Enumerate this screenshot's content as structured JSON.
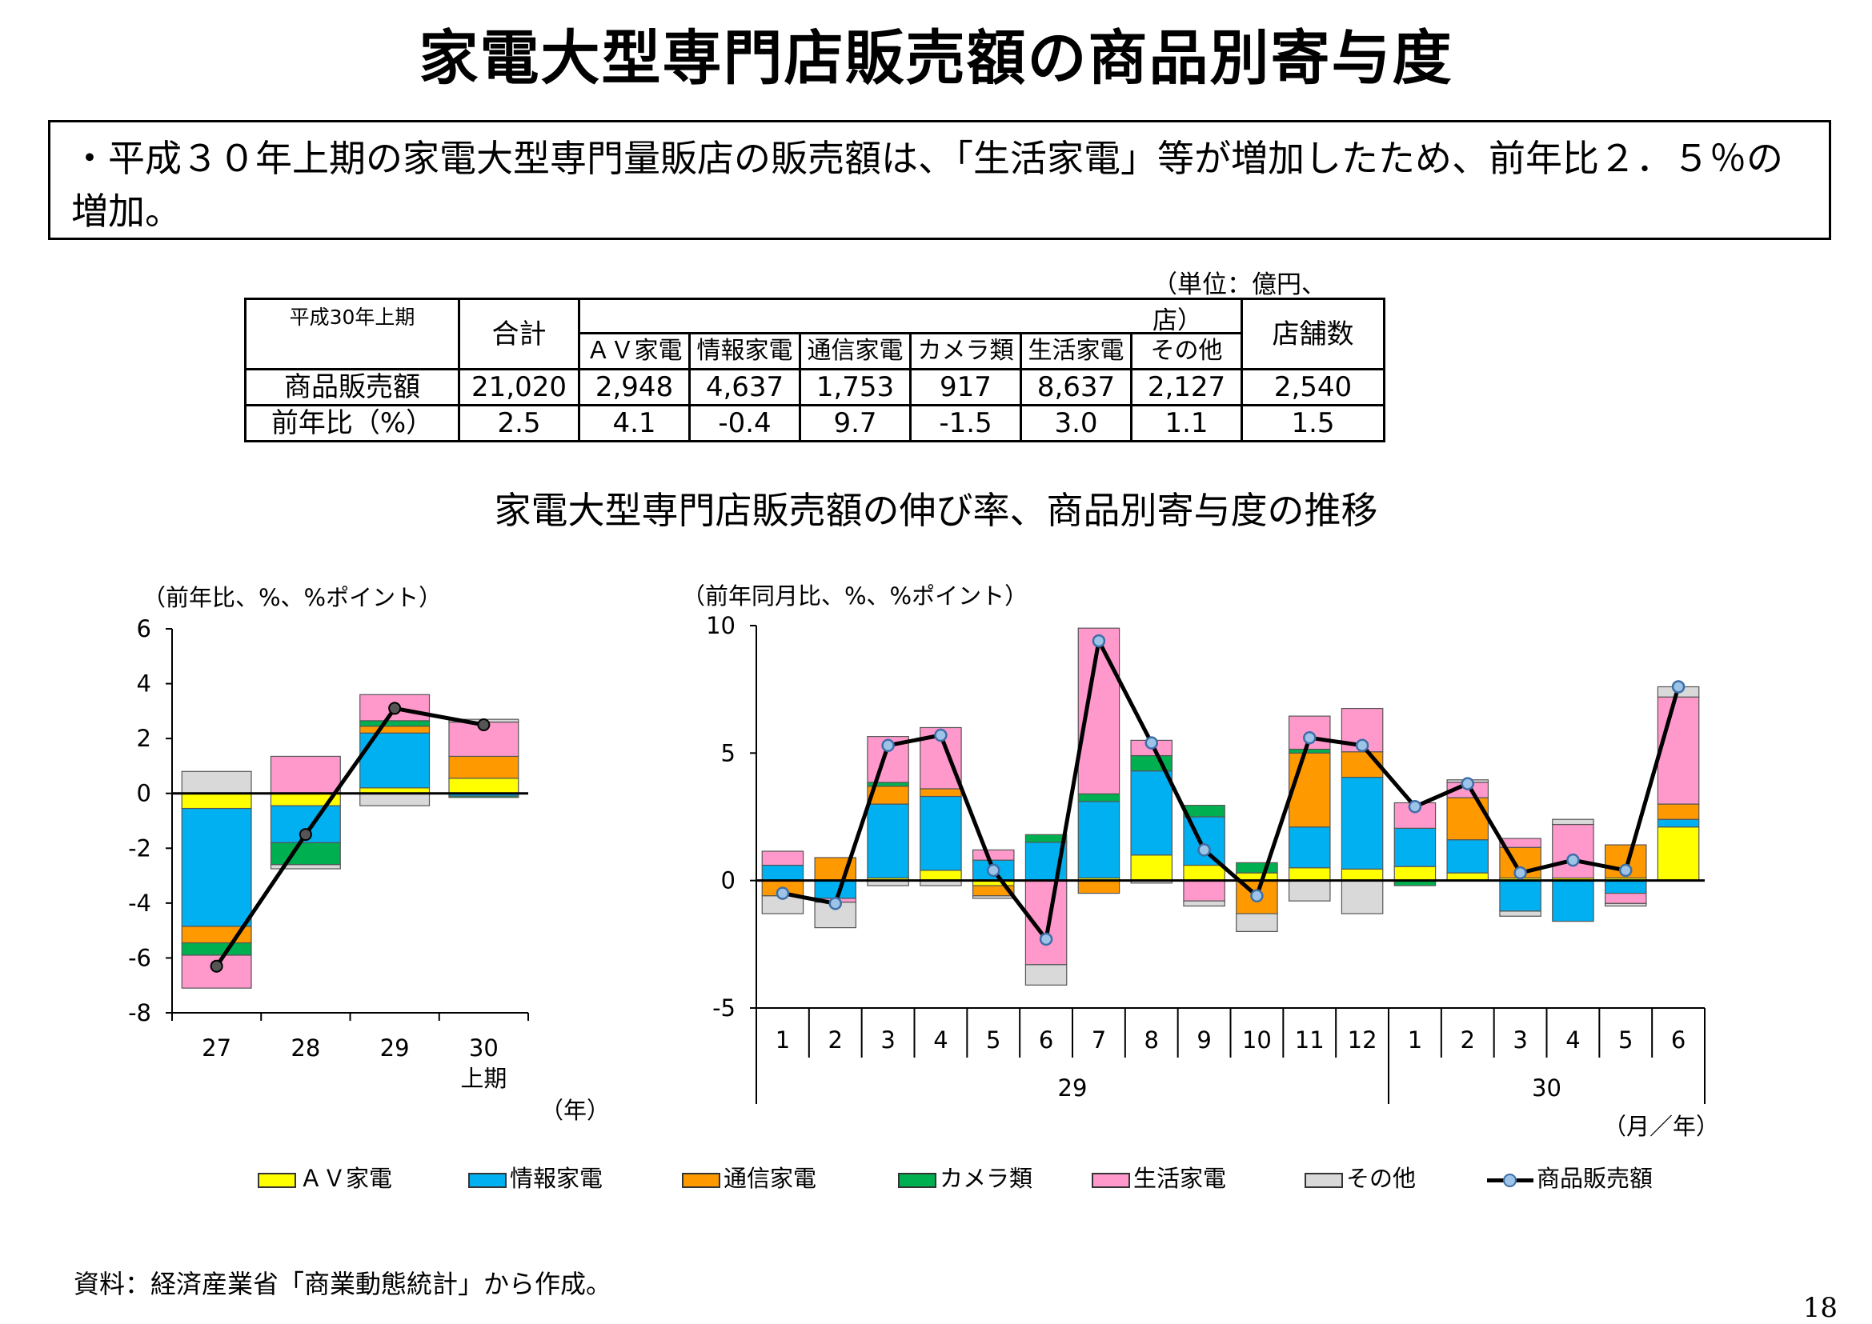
{
  "title": "家電大型専門店販売額の商品別寄与度",
  "summary": "・平成３０年上期の家電大型専門量販店の販売額は、「生活家電」等が増加したため、前年比２．５％の増加。",
  "table": {
    "unit": "（単位：億円、店）",
    "corner": "平成30年上期",
    "total_header": "合計",
    "stores_header": "店舗数",
    "headers": [
      "ＡＶ家電",
      "情報家電",
      "通信家電",
      "カメラ類",
      "生活家電",
      "その他"
    ],
    "rows": [
      {
        "label": "商品販売額",
        "total": "21,020",
        "values": [
          "2,948",
          "4,637",
          "1,753",
          "917",
          "8,637",
          "2,127"
        ],
        "stores": "2,540"
      },
      {
        "label": "前年比（%）",
        "total": "2.5",
        "values": [
          "4.1",
          "-0.4",
          "9.7",
          "-1.5",
          "3.0",
          "1.1"
        ],
        "stores": "1.5"
      }
    ]
  },
  "subtitle": "家電大型専門店販売額の伸び率、商品別寄与度の推移",
  "colors": {
    "av": "#ffff00",
    "info": "#00b0f0",
    "comm": "#ff9900",
    "camera": "#00b050",
    "life": "#ff99cc",
    "other": "#d9d9d9",
    "line": "#000000",
    "marker_fill": "#9dc3e6",
    "marker_stroke": "#3d6ea8"
  },
  "legend": [
    {
      "key": "av",
      "label": "ＡＶ家電"
    },
    {
      "key": "info",
      "label": "情報家電"
    },
    {
      "key": "comm",
      "label": "通信家電"
    },
    {
      "key": "camera",
      "label": "カメラ類"
    },
    {
      "key": "life",
      "label": "生活家電"
    },
    {
      "key": "other",
      "label": "その他"
    },
    {
      "key": "line",
      "label": "商品販売額"
    }
  ],
  "chart_data": [
    {
      "type": "bar",
      "stacked": true,
      "ylabel": "（前年比、%、%ポイント）",
      "xlabel": "（年）",
      "ylim": [
        -8,
        6
      ],
      "yticks": [
        6,
        4,
        2,
        0,
        -2,
        -4,
        -6,
        -8
      ],
      "categories": [
        "27",
        "28",
        "29",
        "30"
      ],
      "category_sublabels": [
        "",
        "",
        "",
        "上期"
      ],
      "series": [
        {
          "key": "av",
          "name": "ＡＶ家電",
          "values": [
            -0.55,
            -0.45,
            0.2,
            0.55
          ]
        },
        {
          "key": "info",
          "name": "情報家電",
          "values": [
            -4.3,
            -1.35,
            2.0,
            -0.1
          ]
        },
        {
          "key": "comm",
          "name": "通信家電",
          "values": [
            -0.6,
            0.0,
            0.25,
            0.8
          ]
        },
        {
          "key": "camera",
          "name": "カメラ類",
          "values": [
            -0.45,
            -0.8,
            0.2,
            -0.05
          ]
        },
        {
          "key": "life",
          "name": "生活家電",
          "values": [
            -1.2,
            1.35,
            0.95,
            1.25
          ]
        },
        {
          "key": "other",
          "name": "その他",
          "values": [
            0.8,
            -0.15,
            -0.45,
            0.1
          ]
        }
      ],
      "line": {
        "key": "line",
        "name": "商品販売額",
        "values": [
          -6.3,
          -1.5,
          3.1,
          2.5
        ]
      }
    },
    {
      "type": "bar",
      "stacked": true,
      "ylabel": "（前年同月比、%、%ポイント）",
      "xlabel": "（月／年）",
      "ylim": [
        -5,
        10
      ],
      "yticks": [
        10,
        5,
        0,
        -5
      ],
      "categories": [
        "1",
        "2",
        "3",
        "4",
        "5",
        "6",
        "7",
        "8",
        "9",
        "10",
        "11",
        "12",
        "1",
        "2",
        "3",
        "4",
        "5",
        "6"
      ],
      "year_groups": [
        {
          "label": "29",
          "count": 12
        },
        {
          "label": "30",
          "count": 6
        }
      ],
      "series": [
        {
          "key": "av",
          "name": "ＡＶ家電",
          "values": [
            0.0,
            0.0,
            0.1,
            0.4,
            -0.2,
            0.0,
            0.1,
            1.0,
            0.6,
            0.3,
            0.5,
            0.45,
            0.55,
            0.3,
            0.1,
            0.1,
            0.1,
            2.1
          ]
        },
        {
          "key": "info",
          "name": "情報家電",
          "values": [
            0.6,
            -0.7,
            2.9,
            2.9,
            0.8,
            1.5,
            3.0,
            3.3,
            1.9,
            0.0,
            1.6,
            3.6,
            1.5,
            1.3,
            -1.2,
            -1.6,
            -0.5,
            0.3
          ]
        },
        {
          "key": "comm",
          "name": "通信家電",
          "values": [
            -0.6,
            0.9,
            0.7,
            0.3,
            -0.4,
            0.0,
            -0.5,
            0.0,
            0.0,
            -1.3,
            2.9,
            1.0,
            0.0,
            1.65,
            1.2,
            0.0,
            1.3,
            0.6
          ]
        },
        {
          "key": "camera",
          "name": "カメラ類",
          "values": [
            0.0,
            0.0,
            0.15,
            0.0,
            0.0,
            0.3,
            0.3,
            0.6,
            0.45,
            0.4,
            0.15,
            0.0,
            -0.2,
            0.0,
            0.0,
            0.0,
            0.0,
            0.0
          ]
        },
        {
          "key": "life",
          "name": "生活家電",
          "values": [
            0.55,
            -0.15,
            1.8,
            2.4,
            0.4,
            -3.3,
            6.5,
            0.6,
            -0.8,
            0.0,
            1.3,
            1.7,
            1.0,
            0.6,
            0.35,
            2.1,
            -0.4,
            4.2
          ]
        },
        {
          "key": "other",
          "name": "その他",
          "values": [
            -0.7,
            -1.0,
            -0.2,
            -0.2,
            -0.1,
            -0.8,
            0.0,
            -0.1,
            -0.2,
            -0.7,
            -0.8,
            -1.3,
            0.0,
            0.1,
            -0.2,
            0.2,
            -0.1,
            0.4
          ]
        }
      ],
      "line": {
        "key": "line",
        "name": "商品販売額",
        "values": [
          -0.5,
          -0.9,
          5.3,
          5.7,
          0.4,
          -2.3,
          9.4,
          5.4,
          1.2,
          -0.6,
          5.6,
          5.3,
          2.9,
          3.8,
          0.3,
          0.8,
          0.4,
          7.6
        ]
      }
    }
  ],
  "source": "資料：経済産業省「商業動態統計」から作成。",
  "page_number": "18"
}
